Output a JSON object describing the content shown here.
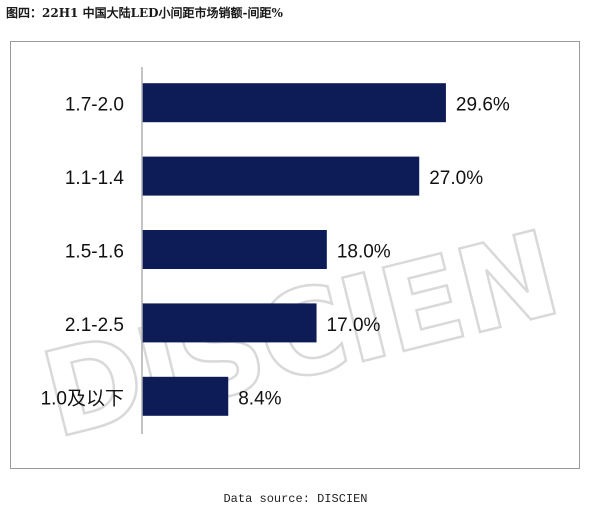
{
  "figure": {
    "title": "图四：22H1 中国大陆LED小间距市场销额-间距%"
  },
  "chart_data": {
    "type": "bar",
    "orientation": "horizontal",
    "categories": [
      "1.7-2.0",
      "1.1-1.4",
      "1.5-1.6",
      "2.1-2.5",
      "1.0及以下"
    ],
    "values": [
      29.6,
      27.0,
      18.0,
      17.0,
      8.4
    ],
    "data_labels": [
      "29.6%",
      "27.0%",
      "18.0%",
      "17.0%",
      "8.4%"
    ],
    "unit": "%",
    "xlim": [
      0,
      32
    ],
    "grid": false,
    "legend": "none",
    "bar_color": "#0d1b57"
  },
  "watermark": "DISCIEN",
  "source_text": "Data source: DISCIEN"
}
